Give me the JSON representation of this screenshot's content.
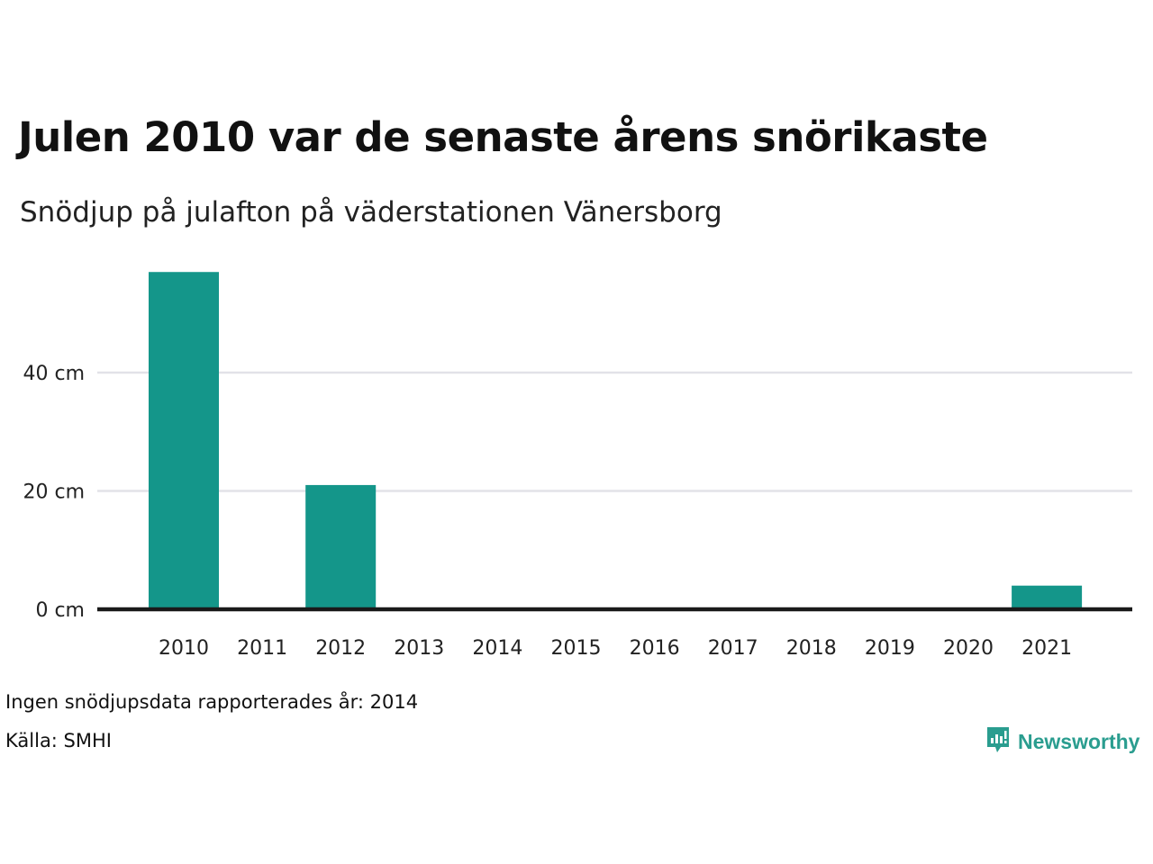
{
  "title": "Julen 2010 var de senaste årens snörikaste",
  "subtitle": "Snödjup på julafton på väderstationen Vänersborg",
  "note": "Ingen snödjupsdata rapporterades år: 2014",
  "source": "Källa: SMHI",
  "brand": {
    "name": "Newsworthy",
    "icon": "newsworthy-logo-icon",
    "color": "#2a9d8f"
  },
  "colors": {
    "bar": "#14968a",
    "grid": "#e2e2e8",
    "axis": "#1a1a1a"
  },
  "chart_data": {
    "type": "bar",
    "categories": [
      "2010",
      "2011",
      "2012",
      "2013",
      "2014",
      "2015",
      "2016",
      "2017",
      "2018",
      "2019",
      "2020",
      "2021"
    ],
    "values": [
      57,
      0,
      21,
      0,
      null,
      0,
      0,
      0,
      0,
      0,
      0,
      4
    ],
    "y_ticks": [
      {
        "value": 0,
        "label": "0 cm"
      },
      {
        "value": 20,
        "label": "20 cm"
      },
      {
        "value": 40,
        "label": "40 cm"
      }
    ],
    "ylim": [
      0,
      60
    ],
    "unit": "cm",
    "grid": true,
    "xlabel": "",
    "ylabel": ""
  }
}
